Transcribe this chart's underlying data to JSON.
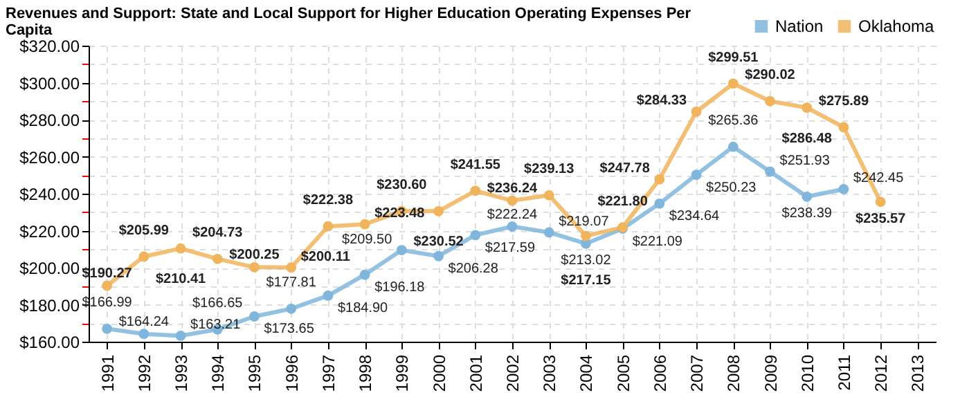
{
  "chart_data": {
    "type": "line",
    "title": "Revenues and Support: State and Local Support for Higher Education Operating Expenses Per Capita",
    "categories": [
      "1991",
      "1992",
      "1993",
      "1994",
      "1995",
      "1996",
      "1997",
      "1998",
      "1999",
      "2000",
      "2001",
      "2002",
      "2003",
      "2004",
      "2005",
      "2006",
      "2007",
      "2008",
      "2009",
      "2010",
      "2011",
      "2012",
      "2013"
    ],
    "series": [
      {
        "name": "Nation",
        "color": "#80b6dc",
        "values": [
          166.99,
          164.24,
          163.21,
          166.65,
          173.65,
          177.81,
          184.9,
          196.18,
          209.5,
          206.28,
          217.59,
          222.24,
          219.07,
          213.02,
          221.09,
          234.64,
          250.23,
          265.36,
          251.93,
          238.39,
          242.45,
          null,
          null
        ],
        "value_labels": [
          "$166.99",
          "$164.24",
          "$163.21",
          "$166.65",
          "$173.65",
          "$177.81",
          "$184.90",
          "$196.18",
          "$209.50",
          "$206.28",
          "$217.59",
          "$222.24",
          "$219.07",
          "$213.02",
          "$221.09",
          "$234.64",
          "$250.23",
          "$265.36",
          "$251.93",
          "$238.39",
          "$242.45",
          null,
          null
        ]
      },
      {
        "name": "Oklahoma",
        "color": "#f0b45c",
        "values": [
          190.27,
          205.99,
          210.41,
          204.73,
          200.25,
          200.11,
          222.38,
          223.48,
          230.6,
          230.52,
          241.55,
          236.24,
          239.13,
          217.15,
          221.8,
          247.78,
          284.33,
          299.51,
          290.02,
          286.48,
          275.89,
          235.57,
          null
        ],
        "value_labels": [
          "$190.27",
          "$205.99",
          "$210.41",
          "$204.73",
          "$200.25",
          "$200.11",
          "$222.38",
          "$223.48",
          "$230.60",
          "$230.52",
          "$241.55",
          "$236.24",
          "$239.13",
          "$217.15",
          "$221.80",
          "$247.78",
          "$284.33",
          "$299.51",
          "$290.02",
          "$286.48",
          "$275.89",
          "$235.57",
          null
        ]
      }
    ],
    "ylim": [
      160,
      320
    ],
    "yticks": [
      {
        "value": 160,
        "label": "$160.00"
      },
      {
        "value": 170,
        "label": null
      },
      {
        "value": 180,
        "label": "$180.00"
      },
      {
        "value": 190,
        "label": null
      },
      {
        "value": 200,
        "label": "$200.00"
      },
      {
        "value": 210,
        "label": null
      },
      {
        "value": 220,
        "label": "$220.00"
      },
      {
        "value": 230,
        "label": null
      },
      {
        "value": 240,
        "label": "$240.00"
      },
      {
        "value": 250,
        "label": null
      },
      {
        "value": 260,
        "label": "$260.00"
      },
      {
        "value": 270,
        "label": null
      },
      {
        "value": 280,
        "label": "$280.00"
      },
      {
        "value": 290,
        "label": null
      },
      {
        "value": 300,
        "label": "$300.00"
      },
      {
        "value": 310,
        "label": null
      },
      {
        "value": 320,
        "label": "$320.00"
      }
    ],
    "grid": true,
    "legend": "top right",
    "marker": "circle",
    "line_style": "solid"
  }
}
